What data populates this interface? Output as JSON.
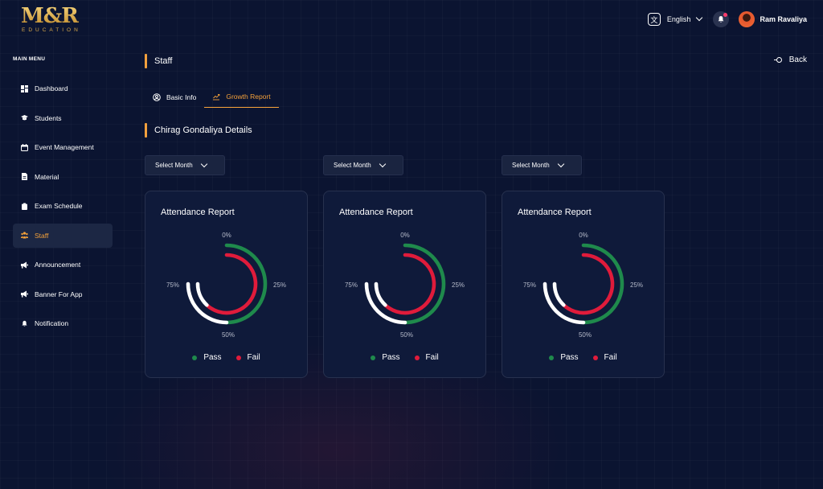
{
  "brand": {
    "logo_text": "M&R",
    "logo_subtext": "EDUCATION"
  },
  "header": {
    "language": "English",
    "language_icon": "translate-icon",
    "user_name": "Ram Ravaliya",
    "notification_dot": true
  },
  "sidebar": {
    "title": "MAIN MENU",
    "items": [
      {
        "label": "Dashboard",
        "icon": "dashboard-icon",
        "active": false
      },
      {
        "label": "Students",
        "icon": "graduation-cap-icon",
        "active": false
      },
      {
        "label": "Event Management",
        "icon": "calendar-icon",
        "active": false
      },
      {
        "label": "Material",
        "icon": "document-icon",
        "active": false
      },
      {
        "label": "Exam Schedule",
        "icon": "clipboard-icon",
        "active": false
      },
      {
        "label": "Staff",
        "icon": "people-icon",
        "active": true
      },
      {
        "label": "Announcement",
        "icon": "megaphone-icon",
        "active": false
      },
      {
        "label": "Banner For App",
        "icon": "megaphone-icon",
        "active": false
      },
      {
        "label": "Notification",
        "icon": "bell-icon",
        "active": false
      }
    ]
  },
  "page": {
    "title": "Staff",
    "back_label": "Back",
    "tabs": [
      {
        "label": "Basic Info",
        "active": false
      },
      {
        "label": "Growth Report",
        "active": true
      }
    ],
    "section_title": "Chirag Gondaliya Details"
  },
  "reports": [
    {
      "select_label": "Select Month",
      "title": "Attendance Report",
      "pct_top": "0%",
      "pct_right": "25%",
      "pct_bottom": "50%",
      "pct_left": "75%",
      "legend_pass": "Pass",
      "legend_fail": "Fail"
    },
    {
      "select_label": "Select Month",
      "title": "Attendance Report",
      "pct_top": "0%",
      "pct_right": "25%",
      "pct_bottom": "50%",
      "pct_left": "75%",
      "legend_pass": "Pass",
      "legend_fail": "Fail"
    },
    {
      "select_label": "Select Month",
      "title": "Attendance Report",
      "pct_top": "0%",
      "pct_right": "25%",
      "pct_bottom": "50%",
      "pct_left": "75%",
      "legend_pass": "Pass",
      "legend_fail": "Fail"
    }
  ],
  "chart_data": {
    "type": "pie",
    "series": [
      {
        "name": "Pass",
        "values": [
          50
        ]
      },
      {
        "name": "Fail",
        "values": [
          62
        ]
      }
    ],
    "colors": {
      "pass": "#1f8a4c",
      "fail": "#e01b3b",
      "track": "#ffffff"
    },
    "accent": "#f4a13a"
  }
}
